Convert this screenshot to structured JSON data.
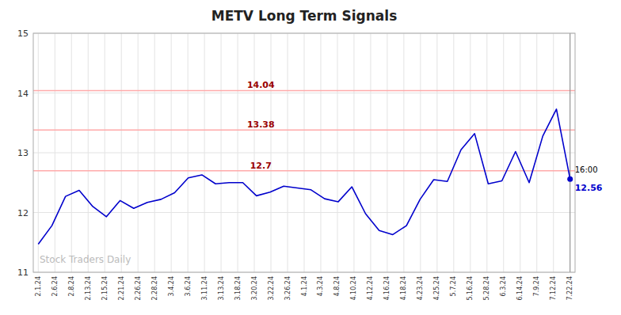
{
  "chart_data": {
    "type": "line",
    "title": "METV Long Term Signals",
    "x": [
      0,
      0.8205128205128205,
      1.641025641025641,
      2.4615384615384617,
      3.282051282051282,
      4.102564102564102,
      4.923076923076923,
      5.743589743589744,
      6.564102564102564,
      7.384615384615385,
      8.205128205128204,
      9.025641025641026,
      9.846153846153847,
      10.666666666666666,
      11.487179487179487,
      12.307692307692308,
      13.128205128205128,
      13.948717948717949,
      14.76923076923077,
      15.58974358974359,
      16.41025641025641,
      17.23076923076923,
      18.05128205128205,
      18.871794871794872,
      19.692307692307693,
      20.512820512820515,
      21.333333333333332,
      22.153846153846153,
      22.974358974358974,
      23.794871794871796,
      24.615384615384617,
      25.435897435897434,
      26.256410256410255,
      27.076923076923077,
      27.897435897435898,
      28.717948717948715,
      29.53846153846154,
      30.358974358974358,
      31.17948717948718,
      32
    ],
    "values": [
      11.47,
      11.78,
      12.27,
      12.37,
      12.1,
      11.93,
      12.2,
      12.07,
      12.17,
      12.22,
      12.33,
      12.58,
      12.63,
      12.48,
      12.5,
      12.5,
      12.28,
      12.34,
      12.44,
      12.41,
      12.38,
      12.23,
      12.18,
      12.43,
      11.98,
      11.7,
      11.63,
      11.78,
      12.22,
      12.55,
      12.52,
      13.05,
      13.32,
      12.48,
      12.53,
      13.02,
      12.5,
      13.28,
      13.73,
      12.56
    ],
    "color": "#0000cc",
    "xlim": [
      -0.3,
      32.3
    ],
    "xticks": [
      {
        "value": 0,
        "label": "2.1.24"
      },
      {
        "value": 1,
        "label": "2.6.24"
      },
      {
        "value": 2,
        "label": "2.8.24"
      },
      {
        "value": 3,
        "label": "2.13.24"
      },
      {
        "value": 4,
        "label": "2.15.24"
      },
      {
        "value": 5,
        "label": "2.21.24"
      },
      {
        "value": 6,
        "label": "2.26.24"
      },
      {
        "value": 7,
        "label": "2.28.24"
      },
      {
        "value": 8,
        "label": "3.4.24"
      },
      {
        "value": 9,
        "label": "3.6.24"
      },
      {
        "value": 10,
        "label": "3.11.24"
      },
      {
        "value": 11,
        "label": "3.13.24"
      },
      {
        "value": 12,
        "label": "3.18.24"
      },
      {
        "value": 13,
        "label": "3.20.24"
      },
      {
        "value": 14,
        "label": "3.22.24"
      },
      {
        "value": 15,
        "label": "3.26.24"
      },
      {
        "value": 16,
        "label": "4.1.24"
      },
      {
        "value": 17,
        "label": "4.3.24"
      },
      {
        "value": 18,
        "label": "4.8.24"
      },
      {
        "value": 19,
        "label": "4.10.24"
      },
      {
        "value": 20,
        "label": "4.12.24"
      },
      {
        "value": 21,
        "label": "4.16.24"
      },
      {
        "value": 22,
        "label": "4.18.24"
      },
      {
        "value": 23,
        "label": "4.23.24"
      },
      {
        "value": 24,
        "label": "4.25.24"
      },
      {
        "value": 25,
        "label": "5.7.24"
      },
      {
        "value": 26,
        "label": "5.16.24"
      },
      {
        "value": 27,
        "label": "5.28.24"
      },
      {
        "value": 28,
        "label": "6.3.24"
      },
      {
        "value": 29,
        "label": "6.14.24"
      },
      {
        "value": 30,
        "label": "7.9.24"
      },
      {
        "value": 31,
        "label": "7.12.24"
      },
      {
        "value": 32,
        "label": "7.22.24"
      }
    ],
    "ylim": [
      11,
      15
    ],
    "yticks": [
      11,
      12,
      13,
      14,
      15
    ],
    "grid": true,
    "reference_lines": [
      {
        "value": 14.04,
        "label": "14.04",
        "color": "#ffaaaa",
        "label_color": "#990000"
      },
      {
        "value": 13.38,
        "label": "13.38",
        "color": "#ffaaaa",
        "label_color": "#990000"
      },
      {
        "value": 12.7,
        "label": "12.7",
        "color": "#ffaaaa",
        "label_color": "#990000"
      }
    ],
    "last_point": {
      "x": 32,
      "y": 12.56,
      "label": "12.56",
      "time_label": "16:00"
    },
    "watermark": "Stock Traders Daily"
  }
}
